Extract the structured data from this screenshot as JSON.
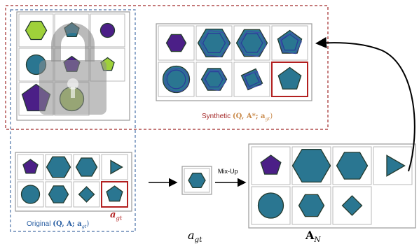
{
  "colors": {
    "purple": "#4b1f87",
    "teal": "#2a7691",
    "teal_dark": "#1f5b73",
    "lime": "#9fd13a",
    "green_light": "#a5c45a",
    "red_frame": "#b22020",
    "red_dash": "#a02828",
    "blue_dash": "#4a72a8",
    "arrow": "#000000"
  },
  "synthetic": {
    "label_prefix": "Synthetic",
    "label_math": "(Q, A*; a",
    "label_sub": "gt",
    "label_close": ")"
  },
  "original": {
    "label_prefix": "Original",
    "label_math": "(Q, A; a",
    "label_sub": "gt",
    "label_close": ")"
  },
  "answer_marker": {
    "base": "a",
    "sub": "gt"
  },
  "mixup": {
    "label": "Mix-Up"
  },
  "target_label": {
    "base": "a",
    "sub": "gt"
  },
  "candidates_label": {
    "base": "A",
    "sub": "N"
  },
  "panels": {
    "lock_grid_shapes": [
      "hexagon-lime",
      "pentagon-teal",
      "circle-purple",
      "circle-teal",
      "pentagon-purple",
      "pentagon-lime",
      "pentagon-purple",
      "circle-green"
    ],
    "synthetic_grid_shapes": [
      "hexagon-purple",
      "hexagon-teal-nested",
      "hexagon-teal-nested",
      "pentagon-teal-nested",
      "circle-teal-nested",
      "hexagon-teal-nested",
      "diamond-teal-nested",
      "pentagon-teal-answer"
    ],
    "original_grid_shapes": [
      "pentagon-purple",
      "hexagon-teal",
      "hexagon-teal",
      "triangle-teal",
      "circle-teal",
      "hexagon-teal",
      "diamond-teal",
      "pentagon-teal-answer"
    ],
    "target_shape": "hexagon-teal",
    "candidate_grid_shapes": [
      "pentagon-purple",
      "hexagon-teal",
      "hexagon-teal",
      "triangle-teal",
      "circle-teal",
      "hexagon-teal",
      "diamond-teal"
    ]
  }
}
